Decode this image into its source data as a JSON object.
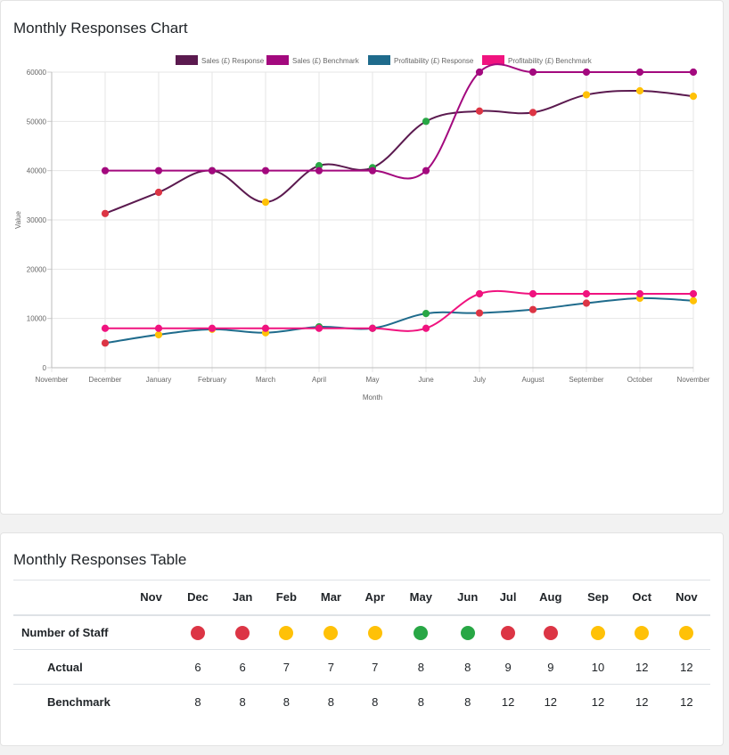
{
  "chart_card": {
    "title": "Monthly Responses Chart"
  },
  "table_card": {
    "title": "Monthly Responses Table"
  },
  "colors": {
    "red": "#dc3545",
    "amber": "#ffc107",
    "green": "#28a745"
  },
  "chart_data": {
    "type": "line",
    "xlabel": "Month",
    "ylabel": "Value",
    "ylim": [
      0,
      60000
    ],
    "yticks": [
      0,
      10000,
      20000,
      30000,
      40000,
      50000,
      60000
    ],
    "grid": true,
    "legend_position": "top",
    "categories": [
      "November",
      "December",
      "January",
      "February",
      "March",
      "April",
      "May",
      "June",
      "July",
      "August",
      "September",
      "October",
      "November"
    ],
    "series": [
      {
        "name": "Sales (£) Response",
        "color": "#5b1a4f",
        "values": [
          null,
          31300,
          35600,
          40000,
          33600,
          41000,
          40600,
          50000,
          52100,
          51800,
          55400,
          56200,
          55100
        ],
        "point_status": [
          null,
          "red",
          "red",
          "green",
          "amber",
          "green",
          "green",
          "green",
          "red",
          "red",
          "amber",
          "amber",
          "amber"
        ]
      },
      {
        "name": "Sales (£) Benchmark",
        "color": "#a3097e",
        "values": [
          null,
          40000,
          40000,
          40000,
          40000,
          40000,
          40000,
          40000,
          60000,
          60000,
          60000,
          60000,
          60000
        ],
        "point_status": [
          null,
          "series",
          "series",
          "series",
          "series",
          "series",
          "series",
          "series",
          "series",
          "series",
          "series",
          "series",
          "series"
        ]
      },
      {
        "name": "Profitability (£) Response",
        "color": "#1f6b8c",
        "values": [
          null,
          5000,
          6700,
          7800,
          7100,
          8300,
          8000,
          11000,
          11100,
          11800,
          13100,
          14100,
          13600
        ],
        "point_status": [
          null,
          "red",
          "amber",
          "amber",
          "amber",
          "green",
          "green",
          "green",
          "red",
          "red",
          "red",
          "amber",
          "amber"
        ]
      },
      {
        "name": "Profitability (£) Benchmark",
        "color": "#f0137f",
        "values": [
          null,
          8000,
          8000,
          8000,
          8000,
          8000,
          8000,
          8000,
          15000,
          15000,
          15000,
          15000,
          15000
        ],
        "point_status": [
          null,
          "series",
          "series",
          "series",
          "series",
          "series",
          "series",
          "series",
          "series",
          "series",
          "series",
          "series",
          "series"
        ]
      }
    ]
  },
  "table": {
    "months": [
      "Nov",
      "Dec",
      "Jan",
      "Feb",
      "Mar",
      "Apr",
      "May",
      "Jun",
      "Jul",
      "Aug",
      "Sep",
      "Oct",
      "Nov"
    ],
    "rows": [
      {
        "label": "Number of Staff",
        "status": [
          null,
          "red",
          "red",
          "amber",
          "amber",
          "amber",
          "green",
          "green",
          "red",
          "red",
          "amber",
          "amber",
          "amber"
        ]
      },
      {
        "label": "Actual",
        "values": [
          "",
          "6",
          "6",
          "7",
          "7",
          "7",
          "8",
          "8",
          "9",
          "9",
          "10",
          "12",
          "12"
        ]
      },
      {
        "label": "Benchmark",
        "values": [
          "",
          "8",
          "8",
          "8",
          "8",
          "8",
          "8",
          "8",
          "12",
          "12",
          "12",
          "12",
          "12"
        ]
      }
    ]
  }
}
